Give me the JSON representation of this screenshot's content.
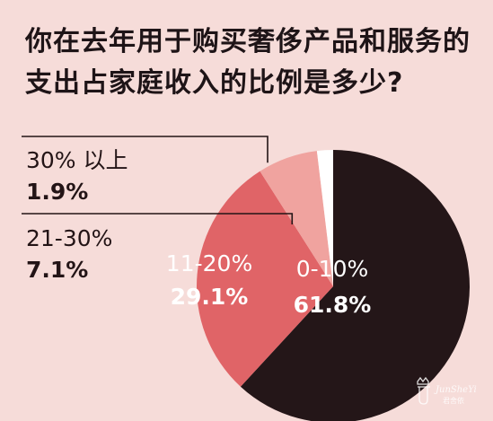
{
  "title_lines": [
    "你在去年用于购买奢侈产品和服务的",
    "支出占家庭收入的比例是多少?"
  ],
  "colors": {
    "background": "#f6dcd9",
    "slice_0_10": "#241618",
    "slice_11_20": "#e06467",
    "slice_21_30": "#f0a39f",
    "slice_30_plus": "#ffffff",
    "label_dark": "#231416",
    "label_light": "#ffffff",
    "leader_line": "#231416"
  },
  "chart_data": {
    "type": "pie",
    "title": "你在去年用于购买奢侈产品和服务的支出占家庭收入的比例是多少?",
    "slices": [
      {
        "category": "0-10%",
        "value": 61.8,
        "value_label": "61.8%"
      },
      {
        "category": "11-20%",
        "value": 29.1,
        "value_label": "29.1%"
      },
      {
        "category": "21-30%",
        "value": 7.1,
        "value_label": "7.1%"
      },
      {
        "category": "30% 以上",
        "value": 1.9,
        "value_label": "1.9%"
      }
    ],
    "label_placement": {
      "0-10%": "inside",
      "11-20%": "inside",
      "21-30%": "outside-left",
      "30% 以上": "outside-left"
    }
  },
  "watermark": {
    "brand": "JunSheYi",
    "subtitle": "君舍依"
  }
}
